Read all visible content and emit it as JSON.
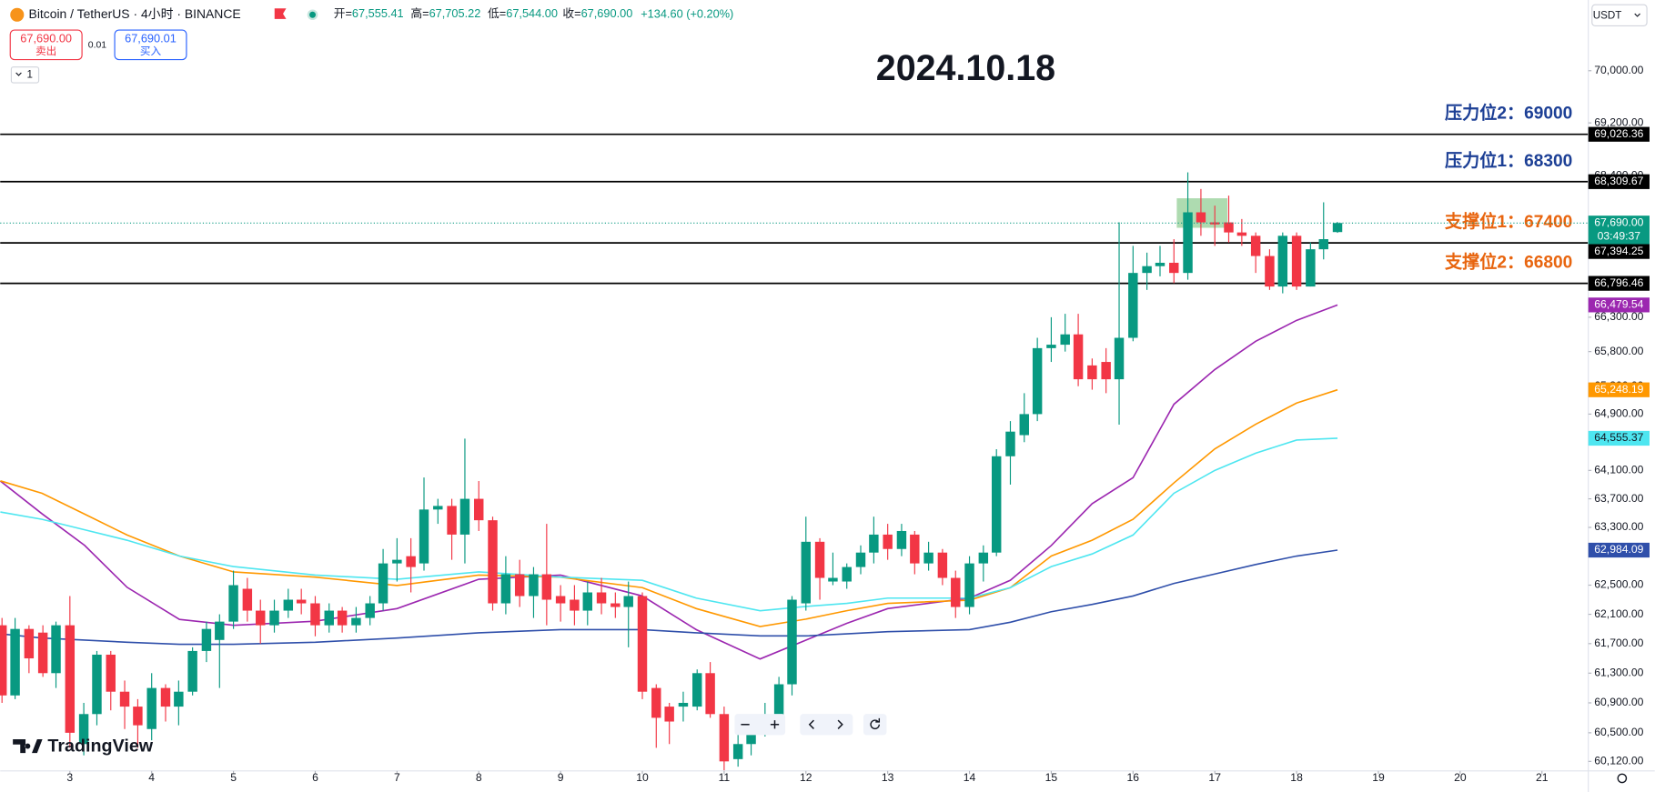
{
  "header": {
    "symbol": "Bitcoin / TetherUS · 4小时 · BINANCE",
    "ohlc": [
      {
        "label": "开=",
        "value": "67,555.41"
      },
      {
        "label": "高=",
        "value": "67,705.22"
      },
      {
        "label": "低=",
        "value": "67,544.00"
      },
      {
        "label": "收=",
        "value": "67,690.00"
      }
    ],
    "change": "+134.60 (+0.20%)",
    "sell": {
      "price": "67,690.00",
      "label": "卖出"
    },
    "spread": "0.01",
    "buy": {
      "price": "67,690.01",
      "label": "买入"
    },
    "interval": "1",
    "currency": "USDT",
    "logo": "TradingView"
  },
  "chart_data": {
    "type": "candlestick",
    "title": "2024.10.18",
    "up_color": "#089981",
    "down_color": "#f23645",
    "log_scale": true,
    "grid": false,
    "xlim": [
      2.148,
      21.567
    ],
    "ylim": [
      59994,
      71099
    ],
    "xticks": [
      3,
      4,
      5,
      6,
      7,
      8,
      9,
      10,
      11,
      12,
      13,
      14,
      15,
      16,
      17,
      18,
      19,
      20,
      21
    ],
    "yticks": [
      {
        "value": 70000,
        "label": "70,000.00"
      },
      {
        "value": 69200,
        "label": "69,200.00"
      },
      {
        "value": 68400,
        "label": "68,400.00"
      },
      {
        "value": 66300,
        "label": "66,300.00"
      },
      {
        "value": 65800,
        "label": "65,800.00"
      },
      {
        "value": 65300,
        "label": "65,300.00"
      },
      {
        "value": 64900,
        "label": "64,900.00"
      },
      {
        "value": 64100,
        "label": "64,100.00"
      },
      {
        "value": 63700,
        "label": "63,700.00"
      },
      {
        "value": 63300,
        "label": "63,300.00"
      },
      {
        "value": 62500,
        "label": "62,500.00"
      },
      {
        "value": 62100,
        "label": "62,100.00"
      },
      {
        "value": 61700,
        "label": "61,700.00"
      },
      {
        "value": 61300,
        "label": "61,300.00"
      },
      {
        "value": 60900,
        "label": "60,900.00"
      },
      {
        "value": 60500,
        "label": "60,500.00"
      },
      {
        "value": 60120,
        "label": "60,120.00"
      }
    ],
    "x": [
      2.17,
      2.33,
      2.5,
      2.67,
      2.83,
      3,
      3.17,
      3.33,
      3.5,
      3.67,
      3.83,
      4,
      4.17,
      4.33,
      4.5,
      4.67,
      4.83,
      5,
      5.17,
      5.33,
      5.5,
      5.67,
      5.83,
      6,
      6.17,
      6.33,
      6.5,
      6.67,
      6.83,
      7,
      7.17,
      7.33,
      7.5,
      7.67,
      7.83,
      8,
      8.17,
      8.33,
      8.5,
      8.67,
      8.83,
      9,
      9.17,
      9.33,
      9.5,
      9.67,
      9.83,
      10,
      10.17,
      10.33,
      10.5,
      10.67,
      10.83,
      11,
      11.17,
      11.33,
      11.5,
      11.67,
      11.83,
      12,
      12.17,
      12.33,
      12.5,
      12.67,
      12.83,
      13,
      13.17,
      13.33,
      13.5,
      13.67,
      13.83,
      14,
      14.17,
      14.33,
      14.5,
      14.67,
      14.83,
      15,
      15.17,
      15.33,
      15.5,
      15.67,
      15.83,
      16,
      16.17,
      16.33,
      16.5,
      16.67,
      16.83,
      17,
      17.17,
      17.33,
      17.5,
      17.67,
      17.83,
      18,
      18.17,
      18.33,
      18.5
    ],
    "open": [
      61950,
      61000,
      61900,
      61850,
      61300,
      61950,
      60350,
      60750,
      61550,
      61050,
      60850,
      60550,
      61100,
      60850,
      61050,
      61600,
      61750,
      62000,
      62450,
      62150,
      61950,
      62150,
      62300,
      62250,
      61950,
      62150,
      61950,
      62050,
      62250,
      62800,
      62900,
      62800,
      63550,
      63600,
      63200,
      63700,
      63400,
      62250,
      62650,
      62350,
      62650,
      62350,
      62300,
      62150,
      62400,
      62250,
      62200,
      62350,
      61100,
      60850,
      60850,
      60850,
      61300,
      60750,
      60150,
      60350,
      60550,
      60650,
      61150,
      62250,
      63100,
      62550,
      62550,
      62750,
      62950,
      63200,
      63000,
      63200,
      62800,
      62950,
      62600,
      62200,
      62800,
      62950,
      64300,
      64600,
      64900,
      65850,
      65900,
      66050,
      65600,
      65650,
      65400,
      66000,
      66950,
      67050,
      67100,
      66950,
      67850,
      67700,
      67700,
      67550,
      67500,
      67200,
      66750,
      67500,
      66750,
      67300,
      67555.41
    ],
    "high": [
      62050,
      62050,
      61950,
      61950,
      62000,
      62350,
      60900,
      61600,
      61600,
      61200,
      60950,
      61300,
      61150,
      61200,
      61650,
      62000,
      62100,
      62700,
      62600,
      62300,
      62300,
      62450,
      62450,
      62350,
      62250,
      62200,
      62200,
      62350,
      63000,
      63150,
      63150,
      64000,
      63700,
      63700,
      64550,
      63950,
      63450,
      62900,
      62850,
      62750,
      63350,
      62500,
      62500,
      62550,
      62600,
      62400,
      62550,
      62400,
      61150,
      60900,
      61050,
      61350,
      61450,
      60850,
      60600,
      60700,
      60900,
      61250,
      62350,
      63450,
      63150,
      62950,
      62800,
      63050,
      63450,
      63350,
      63350,
      63250,
      63100,
      63000,
      62700,
      62900,
      63050,
      64400,
      64800,
      65200,
      66000,
      66300,
      66350,
      66350,
      65700,
      65850,
      67700,
      67350,
      67250,
      67350,
      67450,
      68450,
      68200,
      67950,
      68100,
      67750,
      67550,
      67300,
      67550,
      67550,
      67400,
      68000,
      67705.22
    ],
    "low": [
      60900,
      60950,
      61300,
      61250,
      61100,
      60300,
      60200,
      60600,
      60800,
      60550,
      60300,
      60400,
      60650,
      60600,
      61000,
      61450,
      61100,
      61900,
      62000,
      61700,
      61850,
      62050,
      62100,
      61800,
      61850,
      61850,
      61850,
      61950,
      62150,
      62550,
      62400,
      62700,
      63350,
      62850,
      62800,
      63250,
      62150,
      62100,
      62200,
      62050,
      61950,
      62000,
      61950,
      61950,
      62100,
      62050,
      61650,
      60950,
      60300,
      60350,
      60650,
      60800,
      60700,
      60000,
      60050,
      60200,
      60450,
      60550,
      61000,
      62150,
      62300,
      62500,
      62450,
      62650,
      62800,
      62850,
      62900,
      62650,
      62700,
      62500,
      62050,
      62100,
      62550,
      62900,
      63900,
      64500,
      64800,
      65650,
      65800,
      65300,
      65250,
      65200,
      64750,
      65950,
      66700,
      66900,
      66800,
      66850,
      67500,
      67350,
      67400,
      67350,
      66950,
      66700,
      66650,
      66700,
      66750,
      67150,
      67544
    ],
    "close": [
      61000,
      61900,
      61500,
      61300,
      61950,
      60500,
      60750,
      61550,
      61050,
      60850,
      60600,
      61100,
      60850,
      61050,
      61600,
      61900,
      62000,
      62500,
      62150,
      61950,
      62150,
      62300,
      62250,
      61950,
      62150,
      61950,
      62050,
      62250,
      62800,
      62850,
      62750,
      63550,
      63600,
      63200,
      63700,
      63400,
      62250,
      62650,
      62350,
      62650,
      62300,
      62250,
      62150,
      62400,
      62250,
      62200,
      62350,
      61050,
      60700,
      60650,
      60900,
      61300,
      60750,
      60120,
      60350,
      60550,
      60650,
      61150,
      62300,
      63100,
      62600,
      62600,
      62750,
      62950,
      63200,
      63000,
      63250,
      62800,
      62950,
      62600,
      62200,
      62800,
      62950,
      64300,
      64650,
      64900,
      65850,
      65900,
      66050,
      65400,
      65400,
      65400,
      66000,
      66950,
      67050,
      67100,
      66950,
      67850,
      67700,
      67670,
      67550,
      67500,
      67200,
      66750,
      67500,
      66750,
      67300,
      67450,
      67690
    ],
    "overlays": [
      {
        "color": "#9c27b0",
        "x": [
          2.15,
          2.66,
          3.18,
          3.7,
          4.34,
          5,
          6,
          7,
          8,
          9,
          10,
          10.66,
          11.44,
          12,
          12.5,
          13,
          14,
          14.5,
          15,
          15.5,
          16,
          16.5,
          17,
          17.5,
          18,
          18.5
        ],
        "values": [
          63950,
          63490,
          63050,
          62470,
          62030,
          61950,
          62005,
          62178,
          62581,
          62639,
          62351,
          61890,
          61492,
          61748,
          61977,
          62178,
          62322,
          62567,
          63048,
          63632,
          63997,
          65041,
          65540,
          65950,
          66254,
          66479.54
        ],
        "tag": {
          "value": 66479.54,
          "label": "66,479.54"
        }
      },
      {
        "color": "#ff9800",
        "x": [
          2.15,
          2.66,
          3.18,
          3.7,
          4.34,
          5,
          6,
          7,
          8,
          9,
          10,
          10.66,
          11.44,
          12,
          12.5,
          13,
          14,
          14.5,
          15,
          15.5,
          16,
          16.5,
          17,
          17.5,
          18,
          18.5
        ],
        "values": [
          63953,
          63778,
          63486,
          63194,
          62902,
          62683,
          62610,
          62495,
          62639,
          62610,
          62466,
          62178,
          61933,
          62034,
          62149,
          62250,
          62293,
          62466,
          62902,
          63121,
          63413,
          63924,
          64405,
          64755,
          65058,
          65248.19
        ],
        "tag": {
          "value": 65248.19,
          "label": "65,248.19"
        }
      },
      {
        "color": "#4ee6f0",
        "x": [
          2.15,
          2.66,
          3.18,
          3.7,
          4.34,
          5,
          6,
          7,
          8,
          9,
          10,
          10.66,
          11.44,
          12,
          12.5,
          13,
          14,
          14.5,
          15,
          15.5,
          16,
          16.5,
          17,
          17.5,
          18,
          18.5
        ],
        "values": [
          63515,
          63413,
          63267,
          63121,
          62902,
          62756,
          62639,
          62581,
          62683,
          62610,
          62567,
          62322,
          62149,
          62207,
          62250,
          62322,
          62322,
          62466,
          62756,
          62931,
          63194,
          63778,
          64100,
          64344,
          64530,
          64555.37
        ],
        "tag": {
          "value": 64555.37,
          "label": "64,555.37"
        }
      },
      {
        "color": "#2f4faa",
        "x": [
          2.15,
          2.66,
          3.18,
          3.7,
          4.34,
          5,
          6,
          7,
          8,
          9,
          10,
          10.66,
          11.44,
          12,
          12.5,
          13,
          14,
          14.5,
          15,
          15.5,
          16,
          16.5,
          17,
          17.5,
          18,
          18.5
        ],
        "values": [
          61833,
          61776,
          61748,
          61719,
          61691,
          61691,
          61719,
          61776,
          61847,
          61890,
          61890,
          61847,
          61805,
          61805,
          61833,
          61862,
          61890,
          61991,
          62135,
          62236,
          62351,
          62524,
          62654,
          62785,
          62902,
          62984.09
        ],
        "tag": {
          "value": 62984.09,
          "label": "62,984.09"
        }
      }
    ],
    "levels": [
      {
        "value": 69026.36,
        "label": "69,026.36",
        "note": "压力位2：69000",
        "note_color": "#1c3f95"
      },
      {
        "value": 68309.67,
        "label": "68,309.67",
        "note": "压力位1：68300",
        "note_color": "#1c3f95"
      },
      {
        "value": 67394.25,
        "label": "67,394.25",
        "note": "支撑位1：67400",
        "note_color": "#e8650f"
      },
      {
        "value": 66796.46,
        "label": "66,796.46",
        "note": "支撑位2：66800",
        "note_color": "#e8650f"
      }
    ],
    "last_price": {
      "value": 67690,
      "label": "67,690.00",
      "countdown": "03:49:37",
      "color": "#089981"
    }
  }
}
